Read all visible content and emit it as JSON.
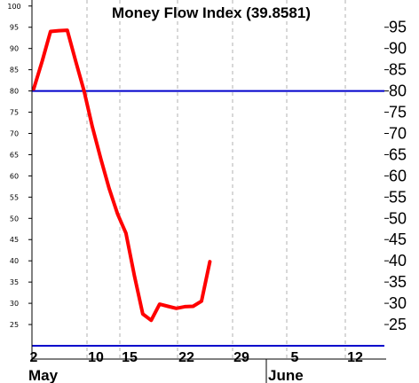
{
  "chart_data": {
    "type": "line",
    "title": "Money Flow Index (39.8581)",
    "ylim": [
      20,
      101
    ],
    "y_ticks_left": [
      "100",
      "95",
      "90",
      "85",
      "80",
      "75",
      "70",
      "65",
      "60",
      "55",
      "50",
      "45",
      "40",
      "35",
      "30",
      "25"
    ],
    "y_ticks_right": [
      "95",
      "90",
      "85",
      "80",
      "75",
      "70",
      "65",
      "60",
      "55",
      "50",
      "45",
      "40",
      "35",
      "30",
      "25"
    ],
    "x_tick_labels": [
      "2",
      "10",
      "15",
      "22",
      "29",
      "5",
      "12"
    ],
    "month_labels": [
      "May",
      "June"
    ],
    "reference_lines": [
      80,
      20
    ],
    "grid": "vertical dashed",
    "series": [
      {
        "color": "#ff0000",
        "x": [
          0,
          1,
          2,
          3,
          4,
          5,
          6,
          7,
          8,
          9,
          10,
          11,
          12,
          13,
          14,
          15,
          16,
          17,
          18,
          19,
          20,
          21
        ],
        "y": [
          80.5,
          87,
          94,
          94.2,
          94.3,
          87,
          80,
          71.5,
          64,
          57,
          51,
          46.5,
          36.5,
          27.5,
          26,
          29.8,
          29.3,
          28.8,
          29.2,
          29.3,
          30.5,
          39.8
        ]
      }
    ],
    "reference_color": "#0000cc"
  }
}
